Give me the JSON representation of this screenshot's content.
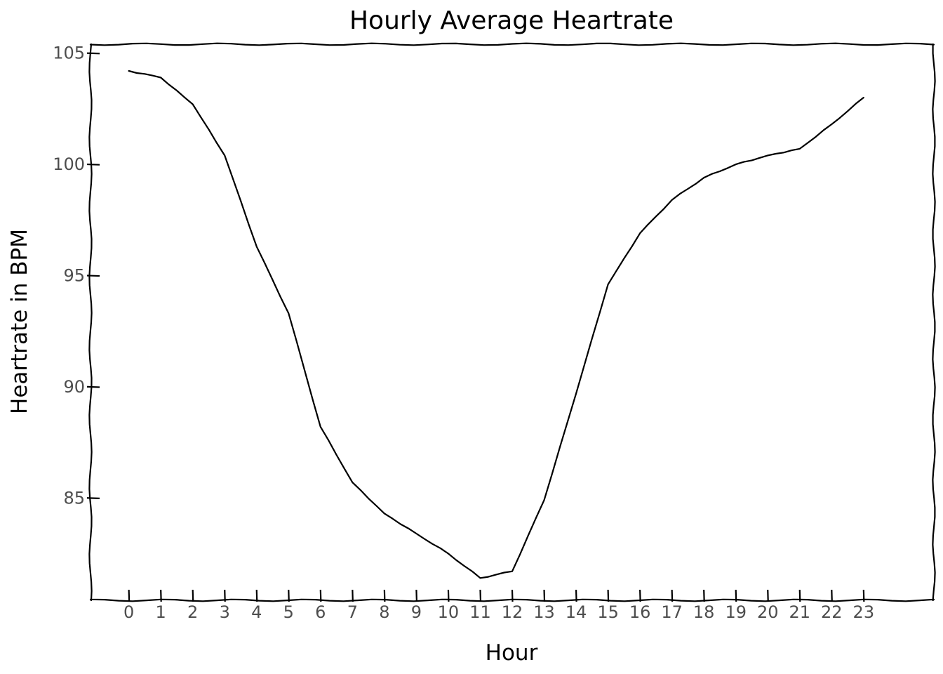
{
  "chart_data": {
    "type": "line",
    "style": "xkcd",
    "title": "Hourly Average Heartrate",
    "xlabel": "Hour",
    "ylabel": "Heartrate in BPM",
    "xlim": [
      -1.2,
      25.2
    ],
    "ylim": [
      80.4,
      105.4
    ],
    "x_ticks": [
      "0",
      "1",
      "2",
      "3",
      "4",
      "5",
      "6",
      "7",
      "8",
      "9",
      "10",
      "11",
      "12",
      "13",
      "14",
      "15",
      "16",
      "17",
      "18",
      "19",
      "20",
      "21",
      "22",
      "23"
    ],
    "y_ticks": [
      "85",
      "90",
      "95",
      "100",
      "105"
    ],
    "grid": false,
    "series": [
      {
        "x": [
          0,
          1,
          2,
          3,
          4,
          5,
          6,
          7,
          8,
          9,
          10,
          11,
          12,
          13,
          14,
          15,
          16,
          17,
          18,
          19,
          20,
          21,
          22,
          23
        ],
        "values": [
          104.2,
          103.9,
          102.7,
          100.4,
          96.3,
          93.3,
          88.2,
          85.7,
          84.3,
          83.4,
          82.5,
          81.4,
          81.7,
          84.9,
          89.7,
          94.6,
          96.9,
          98.4,
          99.4,
          100.0,
          100.4,
          100.7,
          101.8,
          103.0
        ],
        "color": "#000000"
      }
    ]
  }
}
